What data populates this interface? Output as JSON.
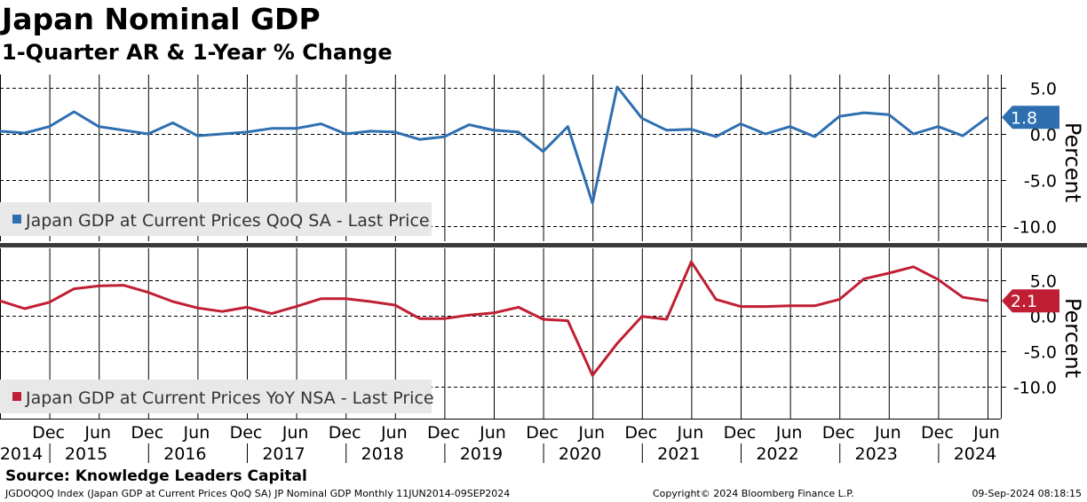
{
  "title": "Japan Nominal GDP",
  "subtitle": "1-Quarter AR & 1-Year % Change",
  "source": "Source:  Knowledge Leaders Capital",
  "footer": {
    "left": "JGDOQOQ Index (Japan GDP at Current Prices QoQ SA) JP Nominal GDP  Monthly 11JUN2014-09SEP2024",
    "middle": "Copyright© 2024 Bloomberg Finance L.P.",
    "right": "09-Sep-2024 08:18:15"
  },
  "chart_data": [
    {
      "type": "line",
      "ylabel": "Percent",
      "ylim": [
        -11.5,
        7
      ],
      "yticks": [
        5.0,
        0.0,
        -5.0,
        -10.0
      ],
      "tick_labels": [
        "5.0",
        "0.0",
        "-5.0",
        "-10.0"
      ],
      "grid": true,
      "legend_position": "bottom-left",
      "series": [
        {
          "name": "Japan GDP at Current Prices QoQ SA - Last Price",
          "color": "#2e6fb0",
          "last_value_label": "1.8",
          "x": [
            "2014-06",
            "2014-09",
            "2014-12",
            "2015-03",
            "2015-06",
            "2015-09",
            "2015-12",
            "2016-03",
            "2016-06",
            "2016-09",
            "2016-12",
            "2017-03",
            "2017-06",
            "2017-09",
            "2017-12",
            "2018-03",
            "2018-06",
            "2018-09",
            "2018-12",
            "2019-03",
            "2019-06",
            "2019-09",
            "2019-12",
            "2020-03",
            "2020-06",
            "2020-09",
            "2020-12",
            "2021-03",
            "2021-06",
            "2021-09",
            "2021-12",
            "2022-03",
            "2022-06",
            "2022-09",
            "2022-12",
            "2023-03",
            "2023-06",
            "2023-09",
            "2023-12",
            "2024-03",
            "2024-06"
          ],
          "values": [
            0.3,
            0.1,
            0.8,
            2.4,
            0.8,
            0.4,
            0.0,
            1.2,
            -0.2,
            0.0,
            0.2,
            0.6,
            0.6,
            1.1,
            0.0,
            0.3,
            0.2,
            -0.6,
            -0.3,
            1.0,
            0.4,
            0.2,
            -1.9,
            0.8,
            -7.5,
            5.1,
            1.7,
            0.4,
            0.5,
            -0.3,
            1.1,
            0.0,
            0.8,
            -0.3,
            1.9,
            2.3,
            2.1,
            0.0,
            0.8,
            -0.2,
            1.8
          ]
        }
      ]
    },
    {
      "type": "line",
      "ylabel": "Percent",
      "ylim": [
        -11.5,
        7
      ],
      "yticks": [
        5.0,
        0.0,
        -5.0,
        -10.0
      ],
      "tick_labels": [
        "5.0",
        "0.0",
        "-5.0",
        "-10.0"
      ],
      "grid": true,
      "legend_position": "bottom-left",
      "series": [
        {
          "name": "Japan GDP at Current Prices YoY NSA - Last Price",
          "color": "#c01f33",
          "last_value_label": "2.1",
          "x": [
            "2014-06",
            "2014-09",
            "2014-12",
            "2015-03",
            "2015-06",
            "2015-09",
            "2015-12",
            "2016-03",
            "2016-06",
            "2016-09",
            "2016-12",
            "2017-03",
            "2017-06",
            "2017-09",
            "2017-12",
            "2018-03",
            "2018-06",
            "2018-09",
            "2018-12",
            "2019-03",
            "2019-06",
            "2019-09",
            "2019-12",
            "2020-03",
            "2020-06",
            "2020-09",
            "2020-12",
            "2021-03",
            "2021-06",
            "2021-09",
            "2021-12",
            "2022-03",
            "2022-06",
            "2022-09",
            "2022-12",
            "2023-03",
            "2023-06",
            "2023-09",
            "2023-12",
            "2024-03",
            "2024-06"
          ],
          "values": [
            2.1,
            1.0,
            1.9,
            3.8,
            4.2,
            4.3,
            3.3,
            2.0,
            1.1,
            0.6,
            1.2,
            0.3,
            1.3,
            2.4,
            2.4,
            2.0,
            1.5,
            -0.4,
            -0.4,
            0.1,
            0.4,
            1.2,
            -0.5,
            -0.7,
            -8.4,
            -3.9,
            -0.1,
            -0.5,
            7.6,
            2.3,
            1.3,
            1.3,
            1.4,
            1.4,
            2.3,
            5.2,
            6.0,
            6.9,
            5.1,
            2.6,
            2.1
          ]
        }
      ]
    }
  ],
  "x_axis": {
    "month_labels": [
      "Dec",
      "Jun",
      "Dec",
      "Jun",
      "Dec",
      "Jun",
      "Dec",
      "Jun",
      "Dec",
      "Jun",
      "Dec",
      "Jun",
      "Dec",
      "Jun",
      "Dec",
      "Jun",
      "Dec",
      "Jun",
      "Dec",
      "Jun"
    ],
    "year_labels": [
      "2014",
      "2015",
      "2016",
      "2017",
      "2018",
      "2019",
      "2020",
      "2021",
      "2022",
      "2023",
      "2024"
    ]
  }
}
